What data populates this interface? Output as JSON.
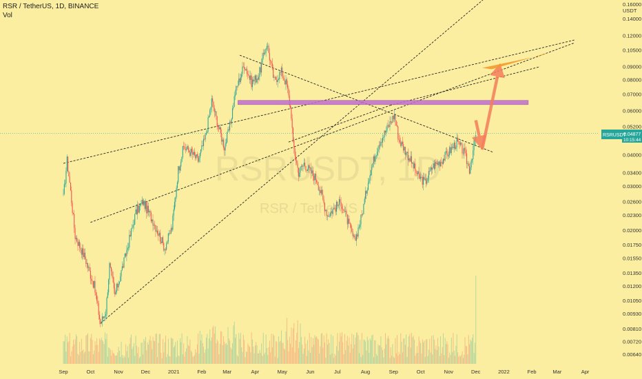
{
  "header": {
    "title": "RSR / TetherUS, 1D, BINANCE",
    "indicator": "Vol"
  },
  "axis": {
    "currency": "USDT",
    "price_tag_symbol": "RSRUSDT",
    "price_tag_value": "0.04877",
    "price_tag_timer": "10:15:44"
  },
  "watermark": {
    "symbol": "RSRUSDT, 1D",
    "name": "RSR / TetherUS"
  },
  "colors": {
    "background": "#fbeea0",
    "up": "#26a69a",
    "down": "#ef5350",
    "zone": "#c06dcf",
    "arrow": "#f47c5a",
    "target": "#f29a2e",
    "tag": "#26a69a"
  },
  "chart_data": {
    "type": "candlestick",
    "title": "RSR / TetherUS, 1D, BINANCE",
    "yscale": "log",
    "ylim": [
      0.0058,
      0.165
    ],
    "x_tick_labels": [
      "Sep",
      "Oct",
      "Nov",
      "Dec",
      "2021",
      "Feb",
      "Mar",
      "Apr",
      "May",
      "Jun",
      "Jul",
      "Aug",
      "Sep",
      "Oct",
      "Nov",
      "Dec",
      "2022",
      "Feb",
      "Mar",
      "Apr"
    ],
    "y_tick_labels": [
      "0.00640",
      "0.00720",
      "0.00810",
      "0.00930",
      "0.01050",
      "0.01200",
      "0.01350",
      "0.01550",
      "0.01750",
      "0.02000",
      "0.02300",
      "0.02600",
      "0.03000",
      "0.03400",
      "0.04000",
      "0.05200",
      "0.06000",
      "0.07000",
      "0.08000",
      "0.09000",
      "0.10500",
      "0.12000",
      "0.14000",
      "0.16000"
    ],
    "close_path": [
      [
        "2020-09-01",
        0.027
      ],
      [
        "2020-09-05",
        0.038
      ],
      [
        "2020-09-08",
        0.031
      ],
      [
        "2020-09-14",
        0.019
      ],
      [
        "2020-09-25",
        0.0155
      ],
      [
        "2020-10-05",
        0.012
      ],
      [
        "2020-10-12",
        0.0085
      ],
      [
        "2020-10-18",
        0.0095
      ],
      [
        "2020-10-22",
        0.0145
      ],
      [
        "2020-10-28",
        0.011
      ],
      [
        "2020-11-08",
        0.0155
      ],
      [
        "2020-11-20",
        0.0235
      ],
      [
        "2020-11-28",
        0.026
      ],
      [
        "2020-12-10",
        0.0215
      ],
      [
        "2020-12-22",
        0.017
      ],
      [
        "2020-12-30",
        0.0205
      ],
      [
        "2021-01-06",
        0.035
      ],
      [
        "2021-01-12",
        0.043
      ],
      [
        "2021-01-20",
        0.041
      ],
      [
        "2021-01-28",
        0.038
      ],
      [
        "2021-02-05",
        0.047
      ],
      [
        "2021-02-12",
        0.066
      ],
      [
        "2021-02-20",
        0.051
      ],
      [
        "2021-02-26",
        0.043
      ],
      [
        "2021-03-04",
        0.052
      ],
      [
        "2021-03-10",
        0.071
      ],
      [
        "2021-03-20",
        0.092
      ],
      [
        "2021-03-28",
        0.078
      ],
      [
        "2021-04-05",
        0.083
      ],
      [
        "2021-04-14",
        0.112
      ],
      [
        "2021-04-22",
        0.079
      ],
      [
        "2021-04-30",
        0.086
      ],
      [
        "2021-05-06",
        0.076
      ],
      [
        "2021-05-11",
        0.058
      ],
      [
        "2021-05-13",
        0.044
      ],
      [
        "2021-05-19",
        0.034
      ],
      [
        "2021-05-25",
        0.037
      ],
      [
        "2021-06-08",
        0.032
      ],
      [
        "2021-06-20",
        0.023
      ],
      [
        "2021-07-05",
        0.026
      ],
      [
        "2021-07-20",
        0.018
      ],
      [
        "2021-07-28",
        0.023
      ],
      [
        "2021-08-05",
        0.033
      ],
      [
        "2021-08-15",
        0.044
      ],
      [
        "2021-08-25",
        0.051
      ],
      [
        "2021-09-02",
        0.058
      ],
      [
        "2021-09-07",
        0.046
      ],
      [
        "2021-09-12",
        0.043
      ],
      [
        "2021-09-20",
        0.038
      ],
      [
        "2021-09-28",
        0.033
      ],
      [
        "2021-10-06",
        0.031
      ],
      [
        "2021-10-14",
        0.036
      ],
      [
        "2021-10-24",
        0.038
      ],
      [
        "2021-11-01",
        0.041
      ],
      [
        "2021-11-10",
        0.045
      ],
      [
        "2021-11-18",
        0.041
      ],
      [
        "2021-11-24",
        0.035
      ],
      [
        "2021-12-01",
        0.048
      ]
    ],
    "annotations": [
      {
        "type": "zone",
        "from": "2021-03-13",
        "to": "2022-01-28",
        "low": 0.0635,
        "high": 0.066
      },
      {
        "type": "arrow",
        "from": [
          "2021-12-01",
          0.055
        ],
        "to": [
          "2021-12-08",
          0.042
        ]
      },
      {
        "type": "arrow",
        "from": [
          "2021-12-08",
          0.042
        ],
        "to": [
          "2021-12-28",
          0.093
        ]
      },
      {
        "type": "target",
        "from": "2021-12-08",
        "to": "2022-02-20",
        "low": 0.089,
        "high": 0.1
      }
    ]
  }
}
